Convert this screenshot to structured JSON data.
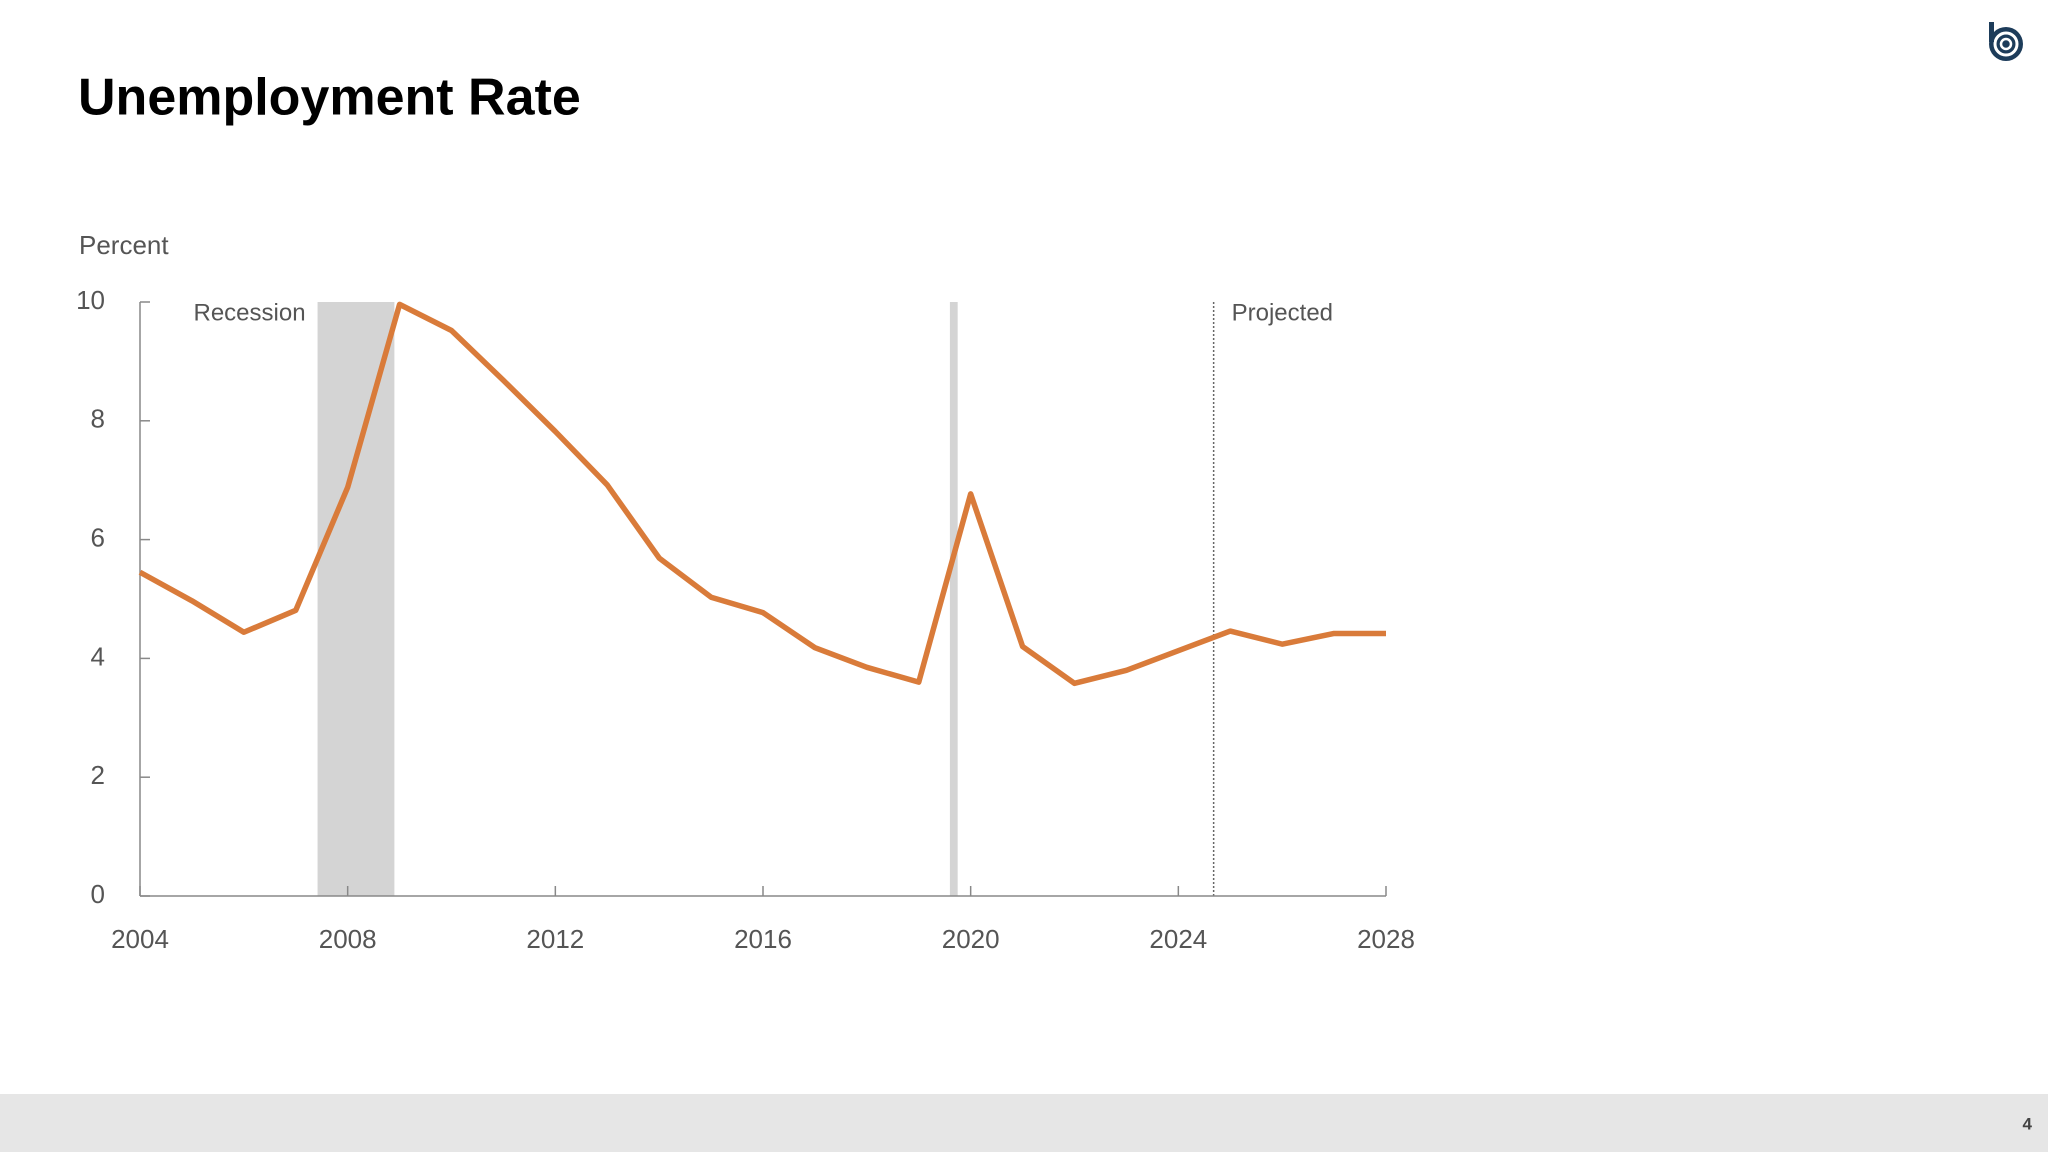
{
  "chart_data": {
    "type": "line",
    "title": "Unemployment Rate",
    "y_label": "Percent",
    "x": [
      2004,
      2005,
      2006,
      2007,
      2008,
      2009,
      2010,
      2011,
      2012,
      2013,
      2014,
      2015,
      2016,
      2017,
      2018,
      2019,
      2020,
      2021,
      2022,
      2023,
      2024,
      2025,
      2026,
      2027,
      2028
    ],
    "values": [
      5.45,
      4.97,
      4.44,
      4.81,
      6.88,
      9.96,
      9.52,
      8.68,
      7.82,
      6.92,
      5.69,
      5.03,
      4.77,
      4.18,
      3.85,
      3.6,
      6.77,
      4.2,
      3.58,
      3.8,
      4.13,
      4.46,
      4.24,
      4.42,
      4.42
    ],
    "color": "#d97b3a",
    "xlim": [
      2004,
      2028
    ],
    "xticks": [
      2004,
      2008,
      2012,
      2016,
      2020,
      2024,
      2028
    ],
    "ylim": [
      0,
      10
    ],
    "yticks": [
      0,
      2,
      4,
      6,
      8,
      10
    ],
    "recessions": [
      [
        2007.42,
        2008.9
      ],
      [
        2019.6,
        2019.75
      ]
    ],
    "recession_label": "Recession",
    "projection_start": 2024.68,
    "projection_label": "Projected"
  },
  "page_number": "4"
}
